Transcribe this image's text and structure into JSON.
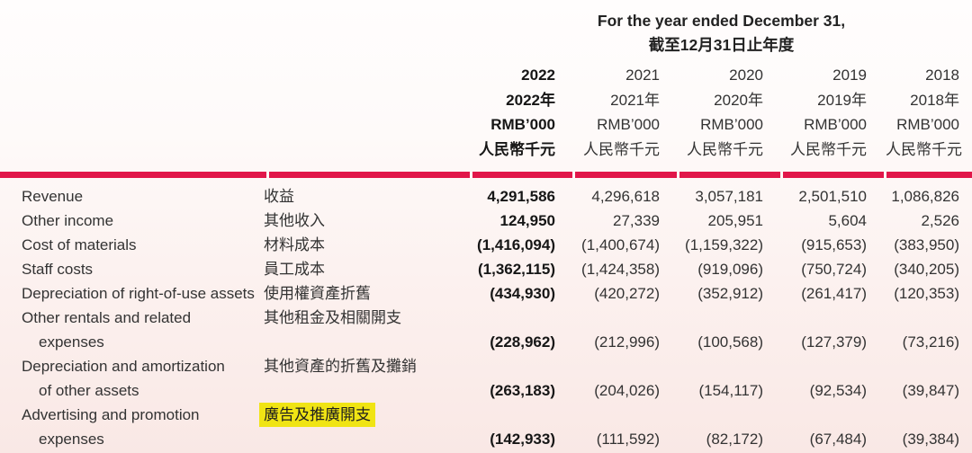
{
  "header": {
    "period_title_en": "For the year ended December 31,",
    "period_title_zh": "截至12月31日止年度"
  },
  "columns": [
    {
      "year": "2022",
      "year_zh": "2022年",
      "unit": "RMB’000",
      "unit_zh": "人民幣千元",
      "emphasis": true
    },
    {
      "year": "2021",
      "year_zh": "2021年",
      "unit": "RMB’000",
      "unit_zh": "人民幣千元",
      "emphasis": false
    },
    {
      "year": "2020",
      "year_zh": "2020年",
      "unit": "RMB’000",
      "unit_zh": "人民幣千元",
      "emphasis": false
    },
    {
      "year": "2019",
      "year_zh": "2019年",
      "unit": "RMB’000",
      "unit_zh": "人民幣千元",
      "emphasis": false
    },
    {
      "year": "2018",
      "year_zh": "2018年",
      "unit": "RMB’000",
      "unit_zh": "人民幣千元",
      "emphasis": false
    }
  ],
  "rows": [
    {
      "label_en_lines": [
        "Revenue"
      ],
      "label_zh": "收益",
      "zh_highlight": false,
      "values": [
        "4,291,586",
        "4,296,618",
        "3,057,181",
        "2,501,510",
        "1,086,826"
      ]
    },
    {
      "label_en_lines": [
        "Other income"
      ],
      "label_zh": "其他收入",
      "zh_highlight": false,
      "values": [
        "124,950",
        "27,339",
        "205,951",
        "5,604",
        "2,526"
      ]
    },
    {
      "label_en_lines": [
        "Cost of materials"
      ],
      "label_zh": "材料成本",
      "zh_highlight": false,
      "values": [
        "(1,416,094)",
        "(1,400,674)",
        "(1,159,322)",
        "(915,653)",
        "(383,950)"
      ]
    },
    {
      "label_en_lines": [
        "Staff costs"
      ],
      "label_zh": "員工成本",
      "zh_highlight": false,
      "values": [
        "(1,362,115)",
        "(1,424,358)",
        "(919,096)",
        "(750,724)",
        "(340,205)"
      ]
    },
    {
      "label_en_lines": [
        "Depreciation of right-of-use assets"
      ],
      "label_zh": "使用權資產折舊",
      "zh_highlight": false,
      "values": [
        "(434,930)",
        "(420,272)",
        "(352,912)",
        "(261,417)",
        "(120,353)"
      ]
    },
    {
      "label_en_lines": [
        "Other rentals and related",
        "expenses"
      ],
      "label_zh": "其他租金及相關開支",
      "zh_highlight": false,
      "values": [
        "(228,962)",
        "(212,996)",
        "(100,568)",
        "(127,379)",
        "(73,216)"
      ]
    },
    {
      "label_en_lines": [
        "Depreciation and amortization",
        "of other assets"
      ],
      "label_zh": "其他資產的折舊及攤銷",
      "zh_highlight": false,
      "values": [
        "(263,183)",
        "(204,026)",
        "(154,117)",
        "(92,534)",
        "(39,847)"
      ]
    },
    {
      "label_en_lines": [
        "Advertising and promotion",
        "expenses"
      ],
      "label_zh": "廣告及推廣開支",
      "zh_highlight": true,
      "values": [
        "(142,933)",
        "(111,592)",
        "(82,172)",
        "(67,484)",
        "(39,384)"
      ]
    }
  ],
  "colors": {
    "rule_red": "#e1174a",
    "highlight_yellow": "#f0e414"
  }
}
